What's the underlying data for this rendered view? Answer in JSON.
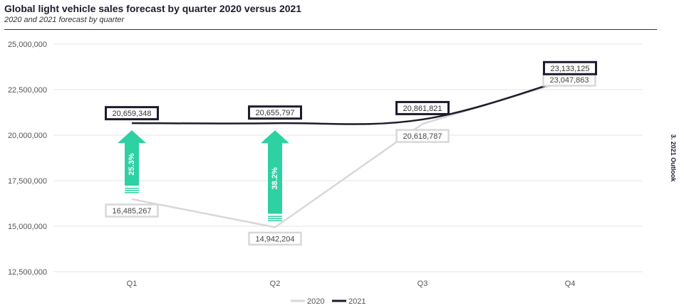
{
  "header": {
    "title": "Global light vehicle sales forecast by quarter 2020 versus 2021",
    "subtitle": "2020 and 2021 forecast by quarter"
  },
  "side_label": "3. 2021 Outlook",
  "colors": {
    "series_2020": "#d7d8d9",
    "series_2021": "#1e1b2e",
    "arrow": "#2ed1a2",
    "grid": "#e6e6e6"
  },
  "chart_data": {
    "type": "line",
    "title": "Global light vehicle sales forecast by quarter 2020 versus 2021",
    "subtitle": "2020 and 2021 forecast by quarter",
    "categories": [
      "Q1",
      "Q2",
      "Q3",
      "Q4"
    ],
    "ylim": [
      12500000,
      25000000
    ],
    "yticks": [
      12500000,
      15000000,
      17500000,
      20000000,
      22500000,
      25000000
    ],
    "ytick_labels": [
      "12,500,000",
      "15,000,000",
      "17,500,000",
      "20,000,000",
      "22,500,000",
      "25,000,000"
    ],
    "grid": true,
    "legend": "bottom-center",
    "series": [
      {
        "name": "2020",
        "values": [
          16485267,
          14942204,
          20618787,
          23047863
        ],
        "labels": [
          "16,485,267",
          "14,942,204",
          "20,618,787",
          "23,047,863"
        ]
      },
      {
        "name": "2021",
        "values": [
          20659348,
          20655797,
          20861821,
          23133125
        ],
        "labels": [
          "20,659,348",
          "20,655,797",
          "20,861,821",
          "23,133,125"
        ]
      }
    ],
    "annotations": [
      {
        "category": "Q1",
        "text": "25.3%",
        "type": "up-arrow"
      },
      {
        "category": "Q2",
        "text": "38.2%",
        "type": "up-arrow"
      }
    ]
  }
}
